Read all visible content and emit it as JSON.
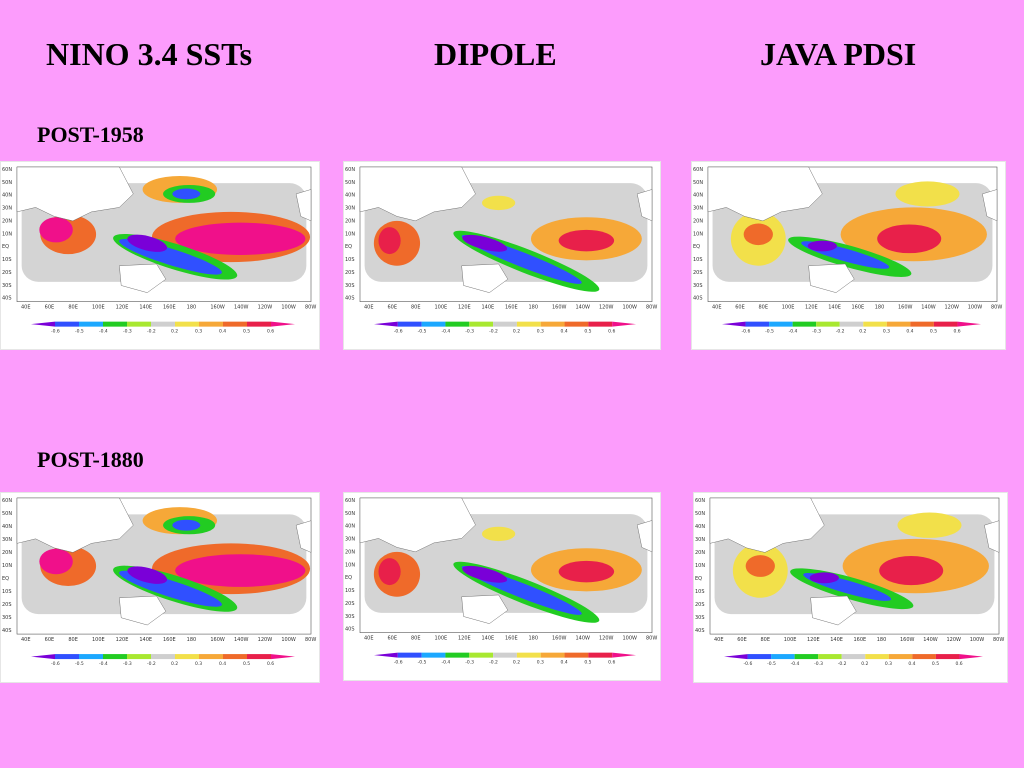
{
  "columns": [
    "NINO 3.4 SSTs",
    "DIPOLE",
    "JAVA PDSI"
  ],
  "rows": [
    "POST-1958",
    "POST-1880"
  ],
  "map": {
    "lat_labels": [
      "60N",
      "50N",
      "40N",
      "30N",
      "20N",
      "10N",
      "EQ",
      "10S",
      "20S",
      "30S",
      "40S"
    ],
    "lon_labels": [
      "40E",
      "60E",
      "80E",
      "100E",
      "120E",
      "140E",
      "160E",
      "180",
      "160W",
      "140W",
      "120W",
      "100W",
      "80W"
    ]
  },
  "colorbar": {
    "labels": [
      "-0.6",
      "-0.5",
      "-0.4",
      "-0.3",
      "-0.2",
      "0.2",
      "0.3",
      "0.4",
      "0.5",
      "0.6"
    ],
    "colors": [
      "#7a00d8",
      "#3050ff",
      "#1ca8ff",
      "#22cc22",
      "#a8e830",
      "#cfcfcf",
      "#f2e04a",
      "#f6a838",
      "#ef6a2a",
      "#e8204a",
      "#f0108a"
    ]
  }
}
